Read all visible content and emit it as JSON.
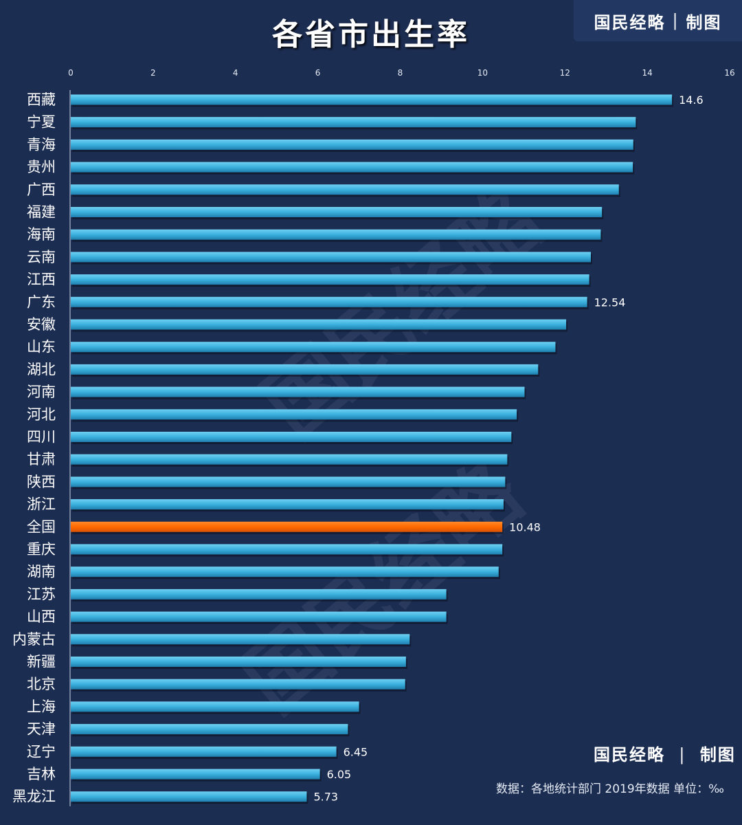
{
  "title": "各省市出生率",
  "brand": {
    "name": "国民经略",
    "separator": "|",
    "suffix": "制图"
  },
  "source": "数据：各地统计部门 2019年数据 单位：‰",
  "watermark": "国民经略",
  "colors": {
    "background": "#1c2d52",
    "bar": "#3bb1de",
    "bar_highlight": "#ff6a00",
    "text": "#ffffff",
    "axis_text": "#e6ecf5"
  },
  "chart_data": {
    "type": "bar",
    "orientation": "horizontal",
    "title": "各省市出生率",
    "unit": "‰",
    "xlim": [
      0,
      16
    ],
    "ticks": [
      0,
      2,
      4,
      6,
      8,
      10,
      12,
      14,
      16
    ],
    "xaxis_position": "top",
    "highlight": "全国",
    "categories": [
      "西藏",
      "宁夏",
      "青海",
      "贵州",
      "广西",
      "福建",
      "海南",
      "云南",
      "江西",
      "广东",
      "安徽",
      "山东",
      "湖北",
      "河南",
      "河北",
      "四川",
      "甘肃",
      "陕西",
      "浙江",
      "全国",
      "重庆",
      "湖南",
      "江苏",
      "山西",
      "内蒙古",
      "新疆",
      "北京",
      "上海",
      "天津",
      "辽宁",
      "吉林",
      "黑龙江"
    ],
    "values": [
      14.6,
      13.72,
      13.66,
      13.65,
      13.31,
      12.9,
      12.87,
      12.63,
      12.59,
      12.54,
      12.03,
      11.77,
      11.35,
      11.02,
      10.83,
      10.7,
      10.6,
      10.55,
      10.51,
      10.48,
      10.48,
      10.39,
      9.12,
      9.12,
      8.23,
      8.14,
      8.12,
      7.0,
      6.73,
      6.45,
      6.05,
      5.73
    ],
    "labels": {
      "西藏": "14.6",
      "广东": "12.54",
      "全国": "10.48",
      "辽宁": "6.45",
      "吉林": "6.05",
      "黑龙江": "5.73"
    }
  }
}
